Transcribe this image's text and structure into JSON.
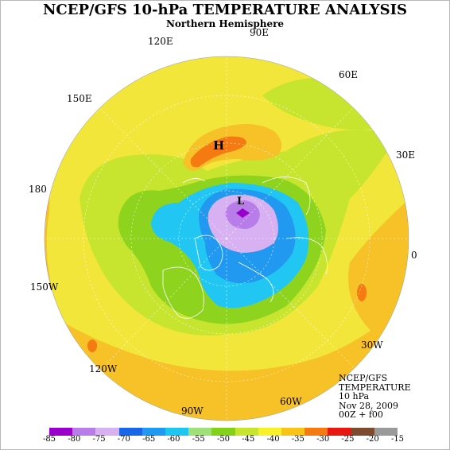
{
  "header": {
    "title": "NCEP/GFS 10-hPa TEMPERATURE ANALYSIS",
    "subtitle": "Northern Hemisphere"
  },
  "longitude_labels": {
    "lon_90e": "90E",
    "lon_120e": "120E",
    "lon_60e": "60E",
    "lon_150e": "150E",
    "lon_30e": "30E",
    "lon_180": "180",
    "lon_0": "0",
    "lon_150w": "150W",
    "lon_30w": "30W",
    "lon_120w": "120W",
    "lon_60w": "60W",
    "lon_90w": "90W"
  },
  "markers": {
    "high": "H",
    "low": "L"
  },
  "info_block": {
    "line1": "NCEP/GFS",
    "line2": "TEMPERATURE",
    "line3": "10 hPa",
    "line4": "Nov 28, 2009",
    "line5": "00Z + f00"
  },
  "legend": {
    "ticks": [
      "-85",
      "-80",
      "-75",
      "-70",
      "-65",
      "-60",
      "-55",
      "-50",
      "-45",
      "-40",
      "-35",
      "-30",
      "-25",
      "-20",
      "-15"
    ],
    "colors": [
      "#9a00cc",
      "#b87de8",
      "#d7b1f1",
      "#1a66e8",
      "#2299f0",
      "#1fc6f2",
      "#9fe07a",
      "#84d11c",
      "#c7e52e",
      "#f7f02a",
      "#f8c419",
      "#f47a11",
      "#e8170f",
      "#7d4b30",
      "#9a9a9a"
    ]
  },
  "map_colors": {
    "ocean_base": "#f2e63a",
    "outer_orange": "#f7c128",
    "green_band": "#8ed41f",
    "light_green": "#c7e52e",
    "cyan": "#21c6f2",
    "blue": "#2299f0",
    "light_purple": "#d7b1f1",
    "purple": "#b87de8",
    "dark_purple": "#9a00cc",
    "red_orange": "#f47a11",
    "red": "#e8170f",
    "coast": "#ffffff"
  }
}
